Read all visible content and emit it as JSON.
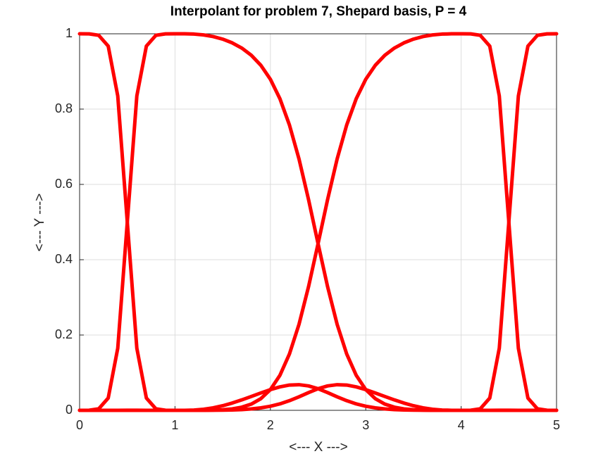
{
  "chart_data": {
    "type": "line",
    "title": "Interpolant for problem 7, Shepard basis, P = 4",
    "xlabel": "<--- X --->",
    "ylabel": "<---  Y --->",
    "x": [
      0,
      0.1,
      0.2,
      0.3,
      0.4,
      0.5,
      0.6,
      0.7,
      0.8,
      0.9,
      1,
      1.1,
      1.2,
      1.3,
      1.4,
      1.5,
      1.6,
      1.7,
      1.8,
      1.9,
      2,
      2.1,
      2.2,
      2.3,
      2.4,
      2.5,
      2.6,
      2.7,
      2.8,
      2.9,
      3,
      3.1,
      3.2,
      3.3,
      3.4,
      3.5,
      3.6,
      3.7,
      3.8,
      3.9,
      4,
      4.1,
      4.2,
      4.3,
      4.4,
      4.5,
      4.6,
      4.7,
      4.8,
      4.9,
      5
    ],
    "series": [
      {
        "color": "#ff0000",
        "values": [
          1,
          0.9998,
          0.9961,
          0.9673,
          0.8349,
          0.4999,
          0.1649,
          0.0326,
          0.0039,
          0.0002,
          0,
          0.0001,
          0.0008,
          0.0028,
          0.0066,
          0.0122,
          0.0193,
          0.0277,
          0.0368,
          0.0461,
          0.055,
          0.0623,
          0.0671,
          0.0681,
          0.0648,
          0.0574,
          0.0471,
          0.0359,
          0.0256,
          0.0171,
          0.0109,
          0.0065,
          0.0037,
          0.0019,
          0.0009,
          0.0004,
          0.0002,
          0,
          0,
          0,
          0,
          0,
          0,
          0,
          0.0001,
          0.0001,
          0,
          0,
          0,
          0,
          0
        ]
      },
      {
        "color": "#ff0000",
        "values": [
          0,
          0.0002,
          0.0039,
          0.0326,
          0.1649,
          0.4999,
          0.8349,
          0.9673,
          0.9961,
          0.9998,
          1,
          0.9999,
          0.9992,
          0.997,
          0.9927,
          0.9858,
          0.9759,
          0.9621,
          0.943,
          0.9164,
          0.8792,
          0.8276,
          0.7577,
          0.6677,
          0.5599,
          0.4426,
          0.3282,
          0.2283,
          0.1497,
          0.093,
          0.055,
          0.0309,
          0.0165,
          0.0083,
          0.0038,
          0.0016,
          0.0006,
          0.0002,
          0,
          0,
          0,
          0,
          0,
          0.0001,
          0.0002,
          0.0002,
          0.0001,
          0,
          0,
          0,
          0
        ]
      },
      {
        "color": "#ff0000",
        "values": [
          0,
          0,
          0,
          0,
          0.0001,
          0.0002,
          0.0002,
          0.0001,
          0,
          0,
          0,
          0,
          0,
          0.0002,
          0.0006,
          0.0016,
          0.0038,
          0.0083,
          0.0165,
          0.0309,
          0.055,
          0.093,
          0.1497,
          0.2283,
          0.3282,
          0.4426,
          0.5599,
          0.6677,
          0.7577,
          0.8276,
          0.8792,
          0.9164,
          0.943,
          0.9621,
          0.9759,
          0.9858,
          0.9927,
          0.997,
          0.9992,
          0.9999,
          1,
          0.9998,
          0.9961,
          0.9673,
          0.8349,
          0.4999,
          0.1649,
          0.0326,
          0.0039,
          0.0002,
          0
        ]
      },
      {
        "color": "#ff0000",
        "values": [
          0,
          0,
          0,
          0,
          0,
          0.0001,
          0.0001,
          0,
          0,
          0,
          0,
          0,
          0,
          0,
          0.0002,
          0.0004,
          0.0009,
          0.0019,
          0.0037,
          0.0065,
          0.0109,
          0.0171,
          0.0256,
          0.0359,
          0.0471,
          0.0574,
          0.0648,
          0.0681,
          0.0671,
          0.0623,
          0.055,
          0.0461,
          0.0368,
          0.0277,
          0.0193,
          0.0122,
          0.0066,
          0.0028,
          0.0008,
          0.0001,
          0,
          0.0002,
          0.0039,
          0.0326,
          0.1649,
          0.4999,
          0.8349,
          0.9673,
          0.9961,
          0.9998,
          1
        ]
      }
    ],
    "xlim": [
      0,
      5
    ],
    "xticks": [
      0,
      1,
      2,
      3,
      4,
      5
    ],
    "ylim": [
      0,
      1
    ],
    "yticks": [
      0,
      0.2,
      0.4,
      0.6,
      0.8,
      1
    ],
    "grid": true
  }
}
